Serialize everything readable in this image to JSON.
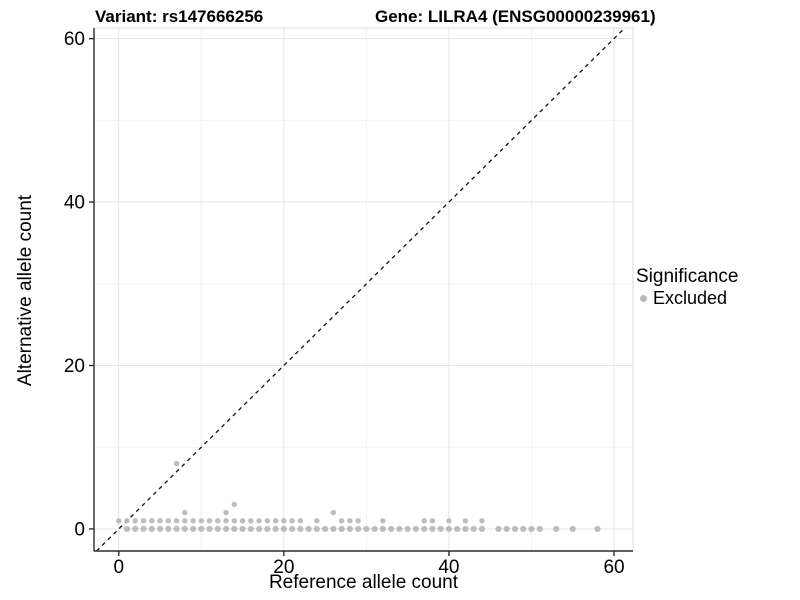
{
  "header": {
    "title_left": "Variant: rs147666256",
    "title_right": "Gene: LILRA4 (ENSG00000239961)"
  },
  "legend": {
    "title": "Significance",
    "items": [
      {
        "label": "Excluded",
        "color": "#b9b9b9"
      }
    ]
  },
  "chart_data": {
    "type": "scatter",
    "title": "Variant: rs147666256   Gene: LILRA4 (ENSG00000239961)",
    "xlabel": "Reference allele count",
    "ylabel": "Alternative allele count",
    "xlim": [
      -3,
      62.3
    ],
    "ylim": [
      -2.7,
      61.3
    ],
    "x_major_ticks": [
      0,
      20,
      40,
      60
    ],
    "y_major_ticks": [
      0,
      20,
      40,
      60
    ],
    "x_tick_labels": [
      "0",
      "20",
      "40",
      "60"
    ],
    "y_tick_labels": [
      "0",
      "20",
      "40",
      "60"
    ],
    "x_minor_ticks": [
      10,
      30,
      50
    ],
    "y_minor_ticks": [
      10,
      30,
      50
    ],
    "grid": true,
    "legend_position": "right",
    "identity_line": {
      "slope": 1,
      "intercept": 0,
      "style": "dashed",
      "color": "#111111"
    },
    "point_color": "#b9b9b9",
    "series": [
      {
        "name": "Excluded",
        "points": [
          [
            1,
            0
          ],
          [
            2,
            0
          ],
          [
            3,
            0
          ],
          [
            4,
            0
          ],
          [
            5,
            0
          ],
          [
            6,
            0
          ],
          [
            7,
            0
          ],
          [
            8,
            0
          ],
          [
            9,
            0
          ],
          [
            10,
            0
          ],
          [
            11,
            0
          ],
          [
            12,
            0
          ],
          [
            13,
            0
          ],
          [
            14,
            0
          ],
          [
            15,
            0
          ],
          [
            16,
            0
          ],
          [
            17,
            0
          ],
          [
            18,
            0
          ],
          [
            19,
            0
          ],
          [
            20,
            0
          ],
          [
            21,
            0
          ],
          [
            22,
            0
          ],
          [
            23,
            0
          ],
          [
            24,
            0
          ],
          [
            25,
            0
          ],
          [
            26,
            0
          ],
          [
            27,
            0
          ],
          [
            28,
            0
          ],
          [
            29,
            0
          ],
          [
            30,
            0
          ],
          [
            31,
            0
          ],
          [
            32,
            0
          ],
          [
            33,
            0
          ],
          [
            34,
            0
          ],
          [
            35,
            0
          ],
          [
            36,
            0
          ],
          [
            37,
            0
          ],
          [
            38,
            0
          ],
          [
            39,
            0
          ],
          [
            40,
            0
          ],
          [
            41,
            0
          ],
          [
            42,
            0
          ],
          [
            43,
            0
          ],
          [
            44,
            0
          ],
          [
            46,
            0
          ],
          [
            47,
            0
          ],
          [
            48,
            0
          ],
          [
            49,
            0
          ],
          [
            50,
            0
          ],
          [
            51,
            0
          ],
          [
            53,
            0
          ],
          [
            55,
            0
          ],
          [
            58,
            0
          ],
          [
            0,
            1
          ],
          [
            1,
            1
          ],
          [
            2,
            1
          ],
          [
            3,
            1
          ],
          [
            4,
            1
          ],
          [
            5,
            1
          ],
          [
            6,
            1
          ],
          [
            7,
            1
          ],
          [
            8,
            1
          ],
          [
            9,
            1
          ],
          [
            10,
            1
          ],
          [
            11,
            1
          ],
          [
            12,
            1
          ],
          [
            13,
            1
          ],
          [
            14,
            1
          ],
          [
            15,
            1
          ],
          [
            16,
            1
          ],
          [
            17,
            1
          ],
          [
            18,
            1
          ],
          [
            19,
            1
          ],
          [
            20,
            1
          ],
          [
            21,
            1
          ],
          [
            22,
            1
          ],
          [
            24,
            1
          ],
          [
            27,
            1
          ],
          [
            28,
            1
          ],
          [
            29,
            1
          ],
          [
            32,
            1
          ],
          [
            37,
            1
          ],
          [
            38,
            1
          ],
          [
            40,
            1
          ],
          [
            42,
            1
          ],
          [
            44,
            1
          ],
          [
            8,
            2
          ],
          [
            13,
            2
          ],
          [
            26,
            2
          ],
          [
            14,
            3
          ],
          [
            7,
            8
          ]
        ]
      }
    ]
  },
  "style": {
    "major_grid_color": "#e5e5e5",
    "minor_grid_color": "#f2f2f2",
    "axis_line_color": "#2b2b2b",
    "panel_border_color": "#dddddd",
    "text_color": "#000000"
  }
}
